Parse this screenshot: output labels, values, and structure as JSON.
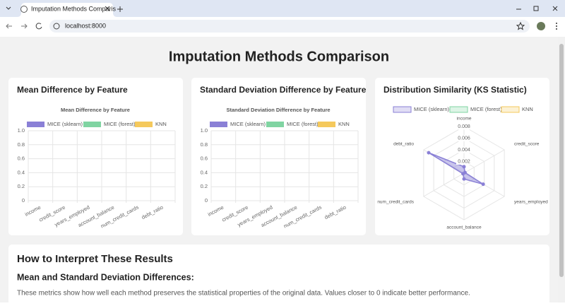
{
  "browser": {
    "tab_title": "Imputation Methods Comparis",
    "url": "localhost:8000"
  },
  "page": {
    "title": "Imputation Methods Comparison"
  },
  "cards": [
    {
      "heading": "Mean Difference by Feature",
      "chart": {
        "type": "bar",
        "title": "Mean Difference by Feature",
        "categories": [
          "income",
          "credit_score",
          "years_employed",
          "account_balance",
          "num_credit_cards",
          "debt_ratio"
        ],
        "series": [
          {
            "name": "MICE (sklearn)",
            "color": "#8a80d6"
          },
          {
            "name": "MICE (forest)",
            "color": "#80d4a2"
          },
          {
            "name": "KNN",
            "color": "#f5c95c"
          }
        ],
        "ylim": [
          0,
          1
        ],
        "yticks": [
          0,
          0.2,
          0.4,
          0.6,
          0.8,
          {
            "value": 1,
            "label": "1.0"
          }
        ],
        "grid": true
      }
    },
    {
      "heading": "Standard Deviation Difference by Feature",
      "chart": {
        "type": "bar",
        "title": "Standard Deviation Difference by Feature",
        "categories": [
          "income",
          "credit_score",
          "years_employed",
          "account_balance",
          "num_credit_cards",
          "debt_ratio"
        ],
        "series": [
          {
            "name": "MICE (sklearn)",
            "color": "#8a80d6"
          },
          {
            "name": "MICE (forest)",
            "color": "#80d4a2"
          },
          {
            "name": "KNN",
            "color": "#f5c95c"
          }
        ],
        "ylim": [
          0,
          1
        ],
        "yticks": [
          0,
          0.2,
          0.4,
          0.6,
          0.8,
          {
            "value": 1,
            "label": "1.0"
          }
        ],
        "grid": true
      }
    },
    {
      "heading": "Distribution Similarity (KS Statistic)",
      "chart": {
        "type": "radar",
        "categories": [
          "income",
          "credit_score",
          "years_employed",
          "account_balance",
          "num_credit_cards",
          "debt_ratio"
        ],
        "series": [
          {
            "name": "MICE (sklearn)",
            "color": "#8a80d6",
            "values": [
              0.0011,
              0.0002,
              0.0038,
              0.001,
              0.0002,
              0.007
            ]
          },
          {
            "name": "MICE (forest)",
            "color": "#80d4a2"
          },
          {
            "name": "KNN",
            "color": "#f5c95c"
          }
        ],
        "rlim": [
          0,
          0.008
        ],
        "rticks": [
          0.002,
          0.004,
          0.006,
          0.008
        ],
        "grid": true
      }
    }
  ],
  "interpretation": {
    "title": "How to Interpret These Results",
    "subtitle": "Mean and Standard Deviation Differences:",
    "text": "These metrics show how well each method preserves the statistical properties of the original data. Values closer to 0 indicate better performance."
  }
}
